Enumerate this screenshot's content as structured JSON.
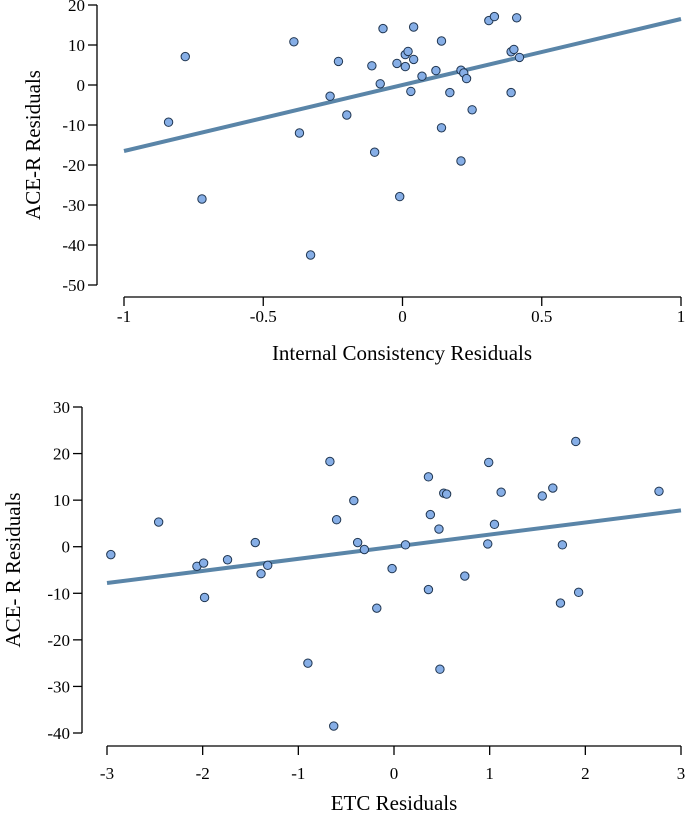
{
  "colors": {
    "point_fill": "#86aee6",
    "point_stroke": "#1f3550",
    "fit_line": "#5a85a8",
    "axis": "#000000"
  },
  "chart_data": [
    {
      "type": "scatter",
      "title": "",
      "xlabel": "Internal Consistency Residuals",
      "ylabel": "ACE-R Residuals",
      "xlim": [
        -1,
        1
      ],
      "ylim": [
        -50,
        20
      ],
      "xticks": [
        -1,
        -0.5,
        0,
        0.5,
        1
      ],
      "xtick_labels": [
        "-1",
        "-0.5",
        "0",
        "0.5",
        "1"
      ],
      "yticks": [
        20,
        10,
        0,
        -10,
        -20,
        -30,
        -40,
        -50
      ],
      "ytick_labels": [
        "20",
        "10",
        "0",
        "-10",
        "-20",
        "-30",
        "-40",
        "-50"
      ],
      "grid": false,
      "regression_line": {
        "x": [
          -1,
          1
        ],
        "y": [
          -16.5,
          16.5
        ]
      },
      "points": [
        {
          "x": -0.84,
          "y": -9.3
        },
        {
          "x": -0.78,
          "y": 7.1
        },
        {
          "x": -0.72,
          "y": -28.5
        },
        {
          "x": -0.39,
          "y": 10.8
        },
        {
          "x": -0.37,
          "y": -12
        },
        {
          "x": -0.33,
          "y": -42.5
        },
        {
          "x": -0.26,
          "y": -2.8
        },
        {
          "x": -0.23,
          "y": 5.9
        },
        {
          "x": -0.2,
          "y": -7.5
        },
        {
          "x": -0.11,
          "y": 4.8
        },
        {
          "x": -0.1,
          "y": -16.8
        },
        {
          "x": -0.08,
          "y": 0.3
        },
        {
          "x": -0.07,
          "y": 14.1
        },
        {
          "x": -0.02,
          "y": 5.4
        },
        {
          "x": -0.01,
          "y": -27.9
        },
        {
          "x": 0.01,
          "y": 4.6
        },
        {
          "x": 0.01,
          "y": 7.6
        },
        {
          "x": 0.02,
          "y": 8.4
        },
        {
          "x": 0.03,
          "y": -1.6
        },
        {
          "x": 0.04,
          "y": 14.5
        },
        {
          "x": 0.04,
          "y": 6.4
        },
        {
          "x": 0.07,
          "y": 2.2
        },
        {
          "x": 0.12,
          "y": 3.6
        },
        {
          "x": 0.14,
          "y": -10.7
        },
        {
          "x": 0.14,
          "y": 11.0
        },
        {
          "x": 0.17,
          "y": -1.9
        },
        {
          "x": 0.21,
          "y": 3.7
        },
        {
          "x": 0.21,
          "y": -19
        },
        {
          "x": 0.22,
          "y": 3.0
        },
        {
          "x": 0.23,
          "y": 1.6
        },
        {
          "x": 0.25,
          "y": -6.2
        },
        {
          "x": 0.31,
          "y": 16.1
        },
        {
          "x": 0.33,
          "y": 17.1
        },
        {
          "x": 0.39,
          "y": 8.3
        },
        {
          "x": 0.39,
          "y": -1.9
        },
        {
          "x": 0.4,
          "y": 8.9
        },
        {
          "x": 0.41,
          "y": 16.8
        },
        {
          "x": 0.42,
          "y": 6.9
        }
      ]
    },
    {
      "type": "scatter",
      "title": "",
      "xlabel": "ETC Residuals",
      "ylabel": "ACE- R Residuals",
      "xlim": [
        -3,
        3
      ],
      "ylim": [
        -40,
        30
      ],
      "xticks": [
        -3,
        -2,
        -1,
        0,
        1,
        2,
        3
      ],
      "xtick_labels": [
        "-3",
        "-2",
        "-1",
        "0",
        "1",
        "2",
        "3"
      ],
      "yticks": [
        30,
        20,
        10,
        0,
        -10,
        -20,
        -30,
        -40
      ],
      "ytick_labels": [
        "30",
        "20",
        "10",
        "0",
        "-10",
        "-20",
        "-30",
        "-40"
      ],
      "grid": false,
      "regression_line": {
        "x": [
          -3,
          3
        ],
        "y": [
          -7.8,
          7.8
        ]
      },
      "points": [
        {
          "x": -2.96,
          "y": -1.7
        },
        {
          "x": -2.46,
          "y": 5.3
        },
        {
          "x": -2.06,
          "y": -4.2
        },
        {
          "x": -1.99,
          "y": -3.5
        },
        {
          "x": -1.98,
          "y": -10.9
        },
        {
          "x": -1.74,
          "y": -2.8
        },
        {
          "x": -1.45,
          "y": 0.9
        },
        {
          "x": -1.39,
          "y": -5.8
        },
        {
          "x": -1.32,
          "y": -4.0
        },
        {
          "x": -0.9,
          "y": -25
        },
        {
          "x": -0.67,
          "y": 18.3
        },
        {
          "x": -0.63,
          "y": -38.5
        },
        {
          "x": -0.6,
          "y": 5.8
        },
        {
          "x": -0.42,
          "y": 9.9
        },
        {
          "x": -0.38,
          "y": 0.9
        },
        {
          "x": -0.31,
          "y": -0.6
        },
        {
          "x": -0.18,
          "y": -13.2
        },
        {
          "x": -0.02,
          "y": -4.7
        },
        {
          "x": 0.12,
          "y": 0.4
        },
        {
          "x": 0.36,
          "y": 15
        },
        {
          "x": 0.36,
          "y": -9.2
        },
        {
          "x": 0.38,
          "y": 6.9
        },
        {
          "x": 0.47,
          "y": 3.8
        },
        {
          "x": 0.48,
          "y": -26.3
        },
        {
          "x": 0.52,
          "y": 11.5
        },
        {
          "x": 0.55,
          "y": 11.3
        },
        {
          "x": 0.74,
          "y": -6.3
        },
        {
          "x": 0.98,
          "y": 0.6
        },
        {
          "x": 0.99,
          "y": 18.1
        },
        {
          "x": 1.05,
          "y": 4.8
        },
        {
          "x": 1.12,
          "y": 11.7
        },
        {
          "x": 1.55,
          "y": 10.9
        },
        {
          "x": 1.66,
          "y": 12.6
        },
        {
          "x": 1.74,
          "y": -12.1
        },
        {
          "x": 1.76,
          "y": 0.4
        },
        {
          "x": 1.9,
          "y": 22.6
        },
        {
          "x": 1.93,
          "y": -9.8
        },
        {
          "x": 2.77,
          "y": 11.9
        }
      ]
    }
  ]
}
